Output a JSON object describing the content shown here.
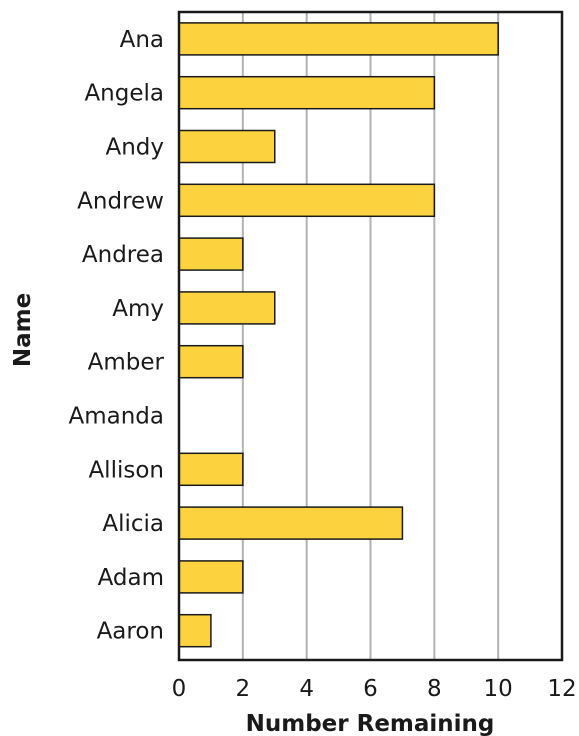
{
  "chart_data": {
    "type": "bar",
    "orientation": "horizontal",
    "categories": [
      "Ana",
      "Angela",
      "Andy",
      "Andrew",
      "Andrea",
      "Amy",
      "Amber",
      "Amanda",
      "Allison",
      "Alicia",
      "Adam",
      "Aaron"
    ],
    "values": [
      10,
      8,
      3,
      8,
      2,
      3,
      2,
      0,
      2,
      7,
      2,
      1
    ],
    "xlabel": "Number Remaining",
    "ylabel": "Name",
    "xlim": [
      0,
      12
    ],
    "xticks": [
      "0",
      "2",
      "4",
      "6",
      "8",
      "10",
      "12"
    ],
    "grid": "vertical",
    "colors": {
      "bar_fill": "#FDD23F",
      "bar_stroke": "#1a1a1a",
      "grid": "#b3b3b3",
      "axis": "#1a1a1a"
    }
  }
}
